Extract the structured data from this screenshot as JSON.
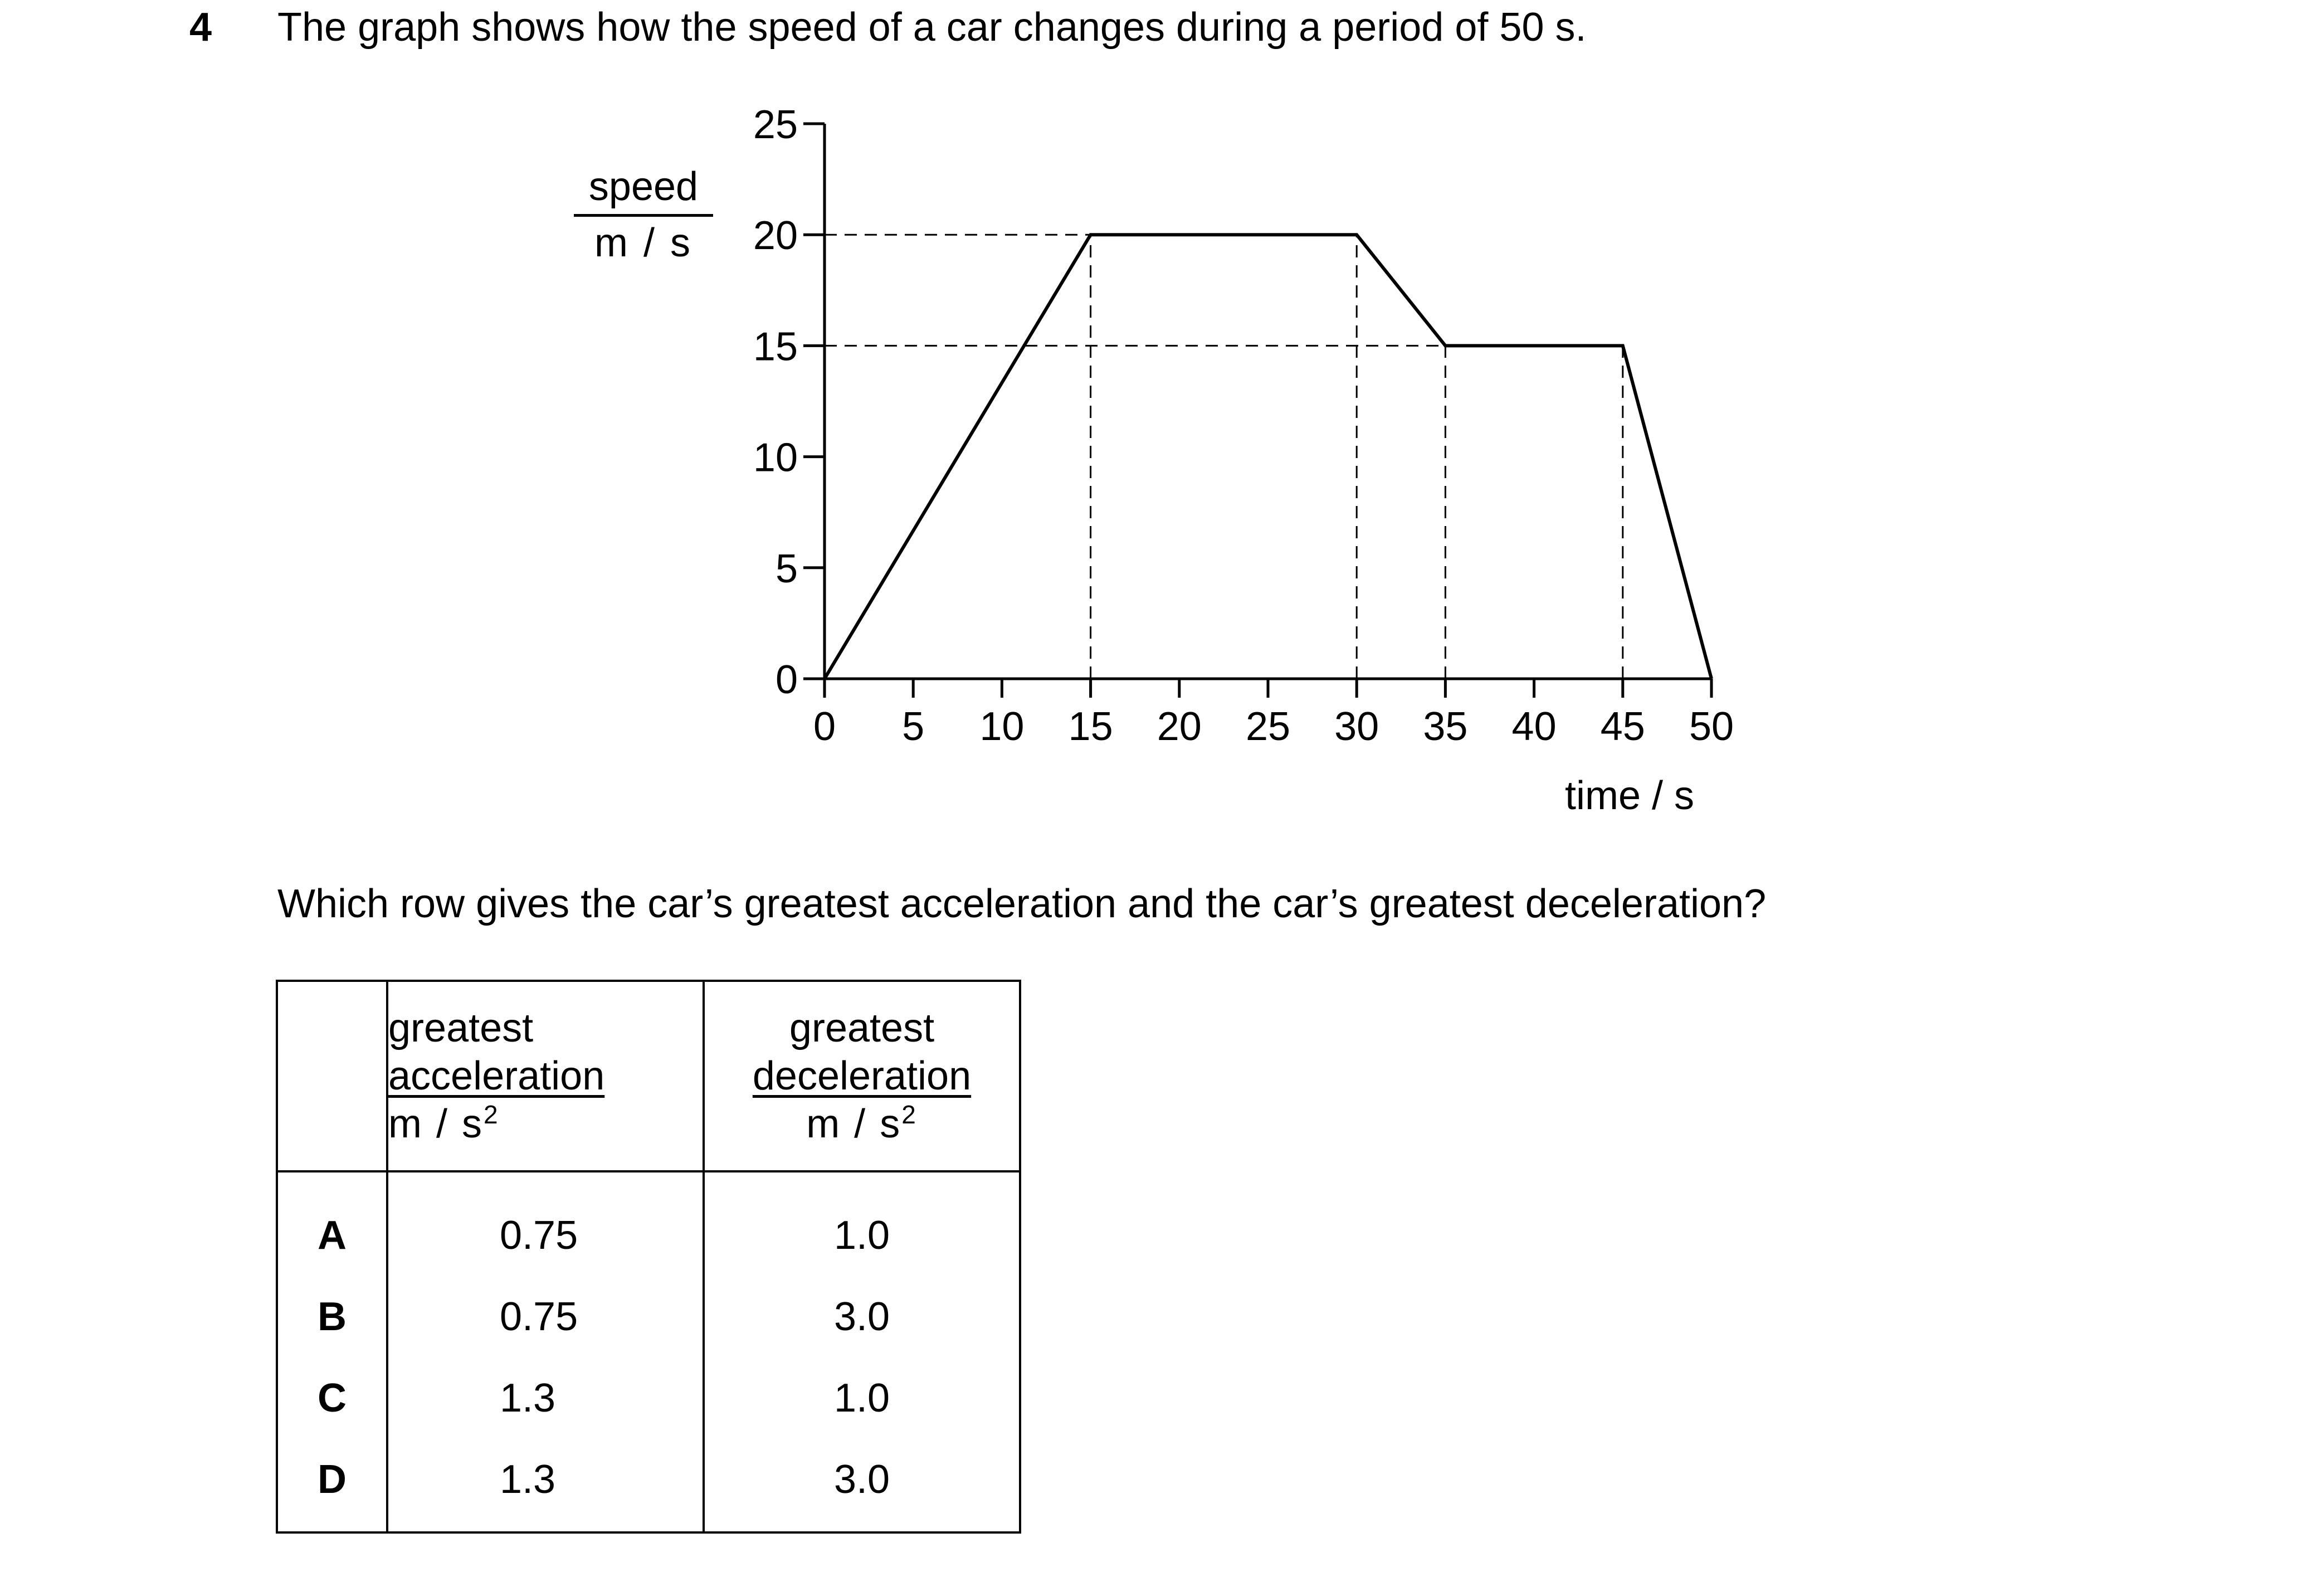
{
  "question": {
    "number": "4",
    "text": "The graph shows how the speed of a car changes during a period of 50 s.",
    "prompt": "Which row gives the car’s greatest acceleration and the car’s greatest deceleration?"
  },
  "chart_data": {
    "type": "line",
    "ylabel_top": "speed",
    "ylabel_bottom": "m / s",
    "xlabel": "time / s",
    "xlim": [
      0,
      50
    ],
    "ylim": [
      0,
      25
    ],
    "x_ticks": [
      0,
      5,
      10,
      15,
      20,
      25,
      30,
      35,
      40,
      45,
      50
    ],
    "y_ticks": [
      0,
      5,
      10,
      15,
      20,
      25
    ],
    "x_tick_labels": [
      "0",
      "5",
      "10",
      "15",
      "20",
      "25",
      "30",
      "35",
      "40",
      "45",
      "50"
    ],
    "y_tick_labels": [
      "0",
      "5",
      "10",
      "15",
      "20",
      "25"
    ],
    "series": [
      {
        "x": [
          0,
          15,
          30,
          35,
          45,
          50
        ],
        "y": [
          0,
          20,
          20,
          15,
          15,
          0
        ]
      }
    ],
    "dashed_guides": {
      "horizontal": [
        {
          "y": 20,
          "x_to": 30
        },
        {
          "y": 15,
          "x_to": 35
        }
      ],
      "vertical": [
        {
          "x": 15,
          "y_to": 20
        },
        {
          "x": 30,
          "y_to": 20
        },
        {
          "x": 35,
          "y_to": 15
        },
        {
          "x": 45,
          "y_to": 15
        }
      ]
    },
    "grid": false,
    "legend": false
  },
  "table": {
    "headers": [
      {
        "top": "",
        "middle": "",
        "unit": "",
        "sup": ""
      },
      {
        "top": "greatest",
        "middle": "acceleration",
        "unit": "m / s",
        "sup": "2"
      },
      {
        "top": "greatest",
        "middle": "deceleration",
        "unit": "m / s",
        "sup": "2"
      }
    ],
    "rows": [
      {
        "key": "A",
        "acceleration": "0.75",
        "deceleration": "1.0"
      },
      {
        "key": "B",
        "acceleration": "0.75",
        "deceleration": "3.0"
      },
      {
        "key": "C",
        "acceleration": "1.3",
        "deceleration": "1.0"
      },
      {
        "key": "D",
        "acceleration": "1.3",
        "deceleration": "3.0"
      }
    ]
  }
}
